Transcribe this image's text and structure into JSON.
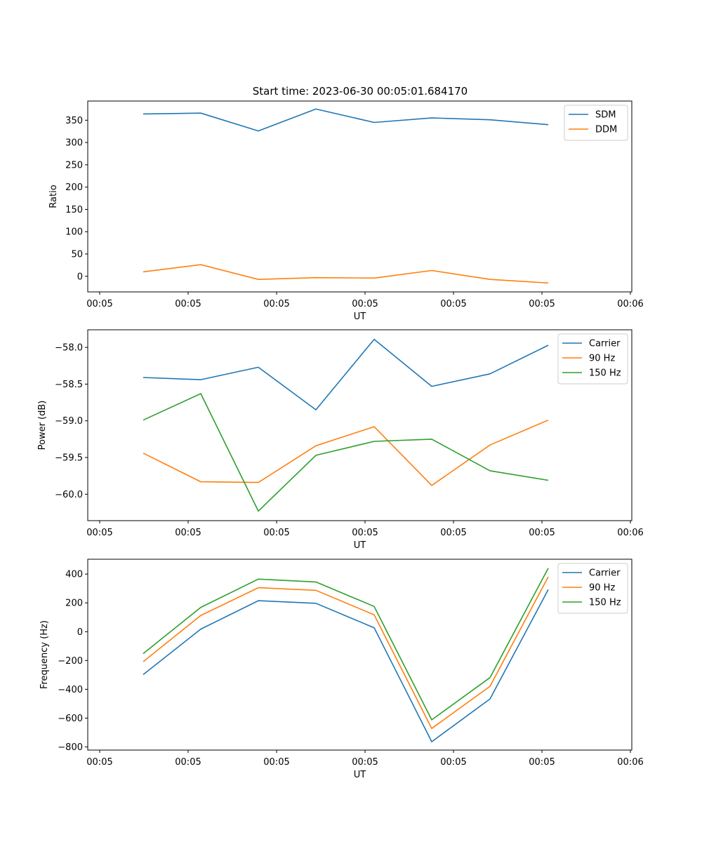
{
  "title": "Start time: 2023-06-30 00:05:01.684170",
  "chart_data": [
    {
      "type": "line",
      "ylabel": "Ratio",
      "xlabel": "UT",
      "x_ticks": [
        "00:05",
        "00:05",
        "00:05",
        "00:05",
        "00:05",
        "00:05",
        "00:06"
      ],
      "ylim": [
        -35,
        393
      ],
      "y_ticks": [
        0,
        50,
        100,
        150,
        200,
        250,
        300,
        350
      ],
      "legend": "top-right",
      "grid": false,
      "series": [
        {
          "name": "SDM",
          "color": "#1f77b4",
          "values": [
            364,
            366,
            326,
            375,
            345,
            355,
            351,
            340
          ]
        },
        {
          "name": "DDM",
          "color": "#ff7f0e",
          "values": [
            10,
            26,
            -7,
            -3,
            -4,
            13,
            -7,
            -15
          ]
        }
      ]
    },
    {
      "type": "line",
      "ylabel": "Power (dB)",
      "xlabel": "UT",
      "x_ticks": [
        "00:05",
        "00:05",
        "00:05",
        "00:05",
        "00:05",
        "00:05",
        "00:06"
      ],
      "ylim": [
        -60.36,
        -57.76
      ],
      "y_ticks": [
        -60.0,
        -59.5,
        -59.0,
        -58.5,
        -58.0
      ],
      "legend": "top-right",
      "grid": false,
      "series": [
        {
          "name": "Carrier",
          "color": "#1f77b4",
          "values": [
            -58.41,
            -58.44,
            -58.27,
            -58.85,
            -57.89,
            -58.53,
            -58.36,
            -57.97
          ]
        },
        {
          "name": "90 Hz",
          "color": "#ff7f0e",
          "values": [
            -59.44,
            -59.83,
            -59.84,
            -59.34,
            -59.08,
            -59.88,
            -59.33,
            -58.99
          ]
        },
        {
          "name": "150 Hz",
          "color": "#2ca02c",
          "values": [
            -58.99,
            -58.63,
            -60.23,
            -59.47,
            -59.28,
            -59.25,
            -59.68,
            -59.81
          ]
        }
      ]
    },
    {
      "type": "line",
      "ylabel": "Frequency (Hz)",
      "xlabel": "UT",
      "x_ticks": [
        "00:05",
        "00:05",
        "00:05",
        "00:05",
        "00:05",
        "00:05",
        "00:06"
      ],
      "ylim": [
        -822,
        503
      ],
      "y_ticks": [
        -800,
        -600,
        -400,
        -200,
        0,
        200,
        400
      ],
      "legend": "top-right",
      "grid": false,
      "series": [
        {
          "name": "Carrier",
          "color": "#1f77b4",
          "values": [
            -298,
            18,
            215,
            197,
            27,
            -764,
            -467,
            292
          ]
        },
        {
          "name": "90 Hz",
          "color": "#ff7f0e",
          "values": [
            -208,
            113,
            305,
            287,
            117,
            -672,
            -379,
            381
          ]
        },
        {
          "name": "150 Hz",
          "color": "#2ca02c",
          "values": [
            -152,
            169,
            365,
            345,
            175,
            -612,
            -319,
            441
          ]
        }
      ]
    }
  ]
}
